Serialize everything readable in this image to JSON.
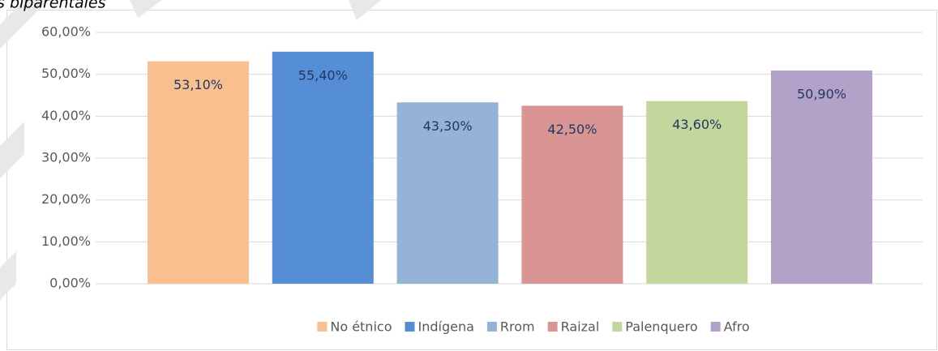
{
  "chart_data": {
    "type": "bar",
    "title": "s biparentales",
    "series": [
      {
        "name": "No étnico",
        "color": "#f9bf8f",
        "values": [
          53.1
        ],
        "value_labels": [
          "53,10%"
        ]
      },
      {
        "name": "Indígena",
        "color": "#558ed5",
        "values": [
          55.4
        ],
        "value_labels": [
          "55,40%"
        ]
      },
      {
        "name": "Rrom",
        "color": "#95b3d7",
        "values": [
          43.3
        ],
        "value_labels": [
          "43,30%"
        ]
      },
      {
        "name": "Raizal",
        "color": "#d99594",
        "values": [
          42.5
        ],
        "value_labels": [
          "42,50%"
        ]
      },
      {
        "name": "Palenquero",
        "color": "#c3d69b",
        "values": [
          43.6
        ],
        "value_labels": [
          "43,60%"
        ]
      },
      {
        "name": "Afro",
        "color": "#b3a2c7",
        "values": [
          50.9
        ],
        "value_labels": [
          "50,90%"
        ]
      }
    ],
    "ylim": [
      0,
      60
    ],
    "yticks": [
      {
        "value": 0,
        "label": "0,00%"
      },
      {
        "value": 10,
        "label": "10,00%"
      },
      {
        "value": 20,
        "label": "20,00%"
      },
      {
        "value": 30,
        "label": "30,00%"
      },
      {
        "value": 40,
        "label": "40,00%"
      },
      {
        "value": 50,
        "label": "50,00%"
      },
      {
        "value": 60,
        "label": "60,00%"
      }
    ],
    "grid": true,
    "legend": "bottom"
  }
}
